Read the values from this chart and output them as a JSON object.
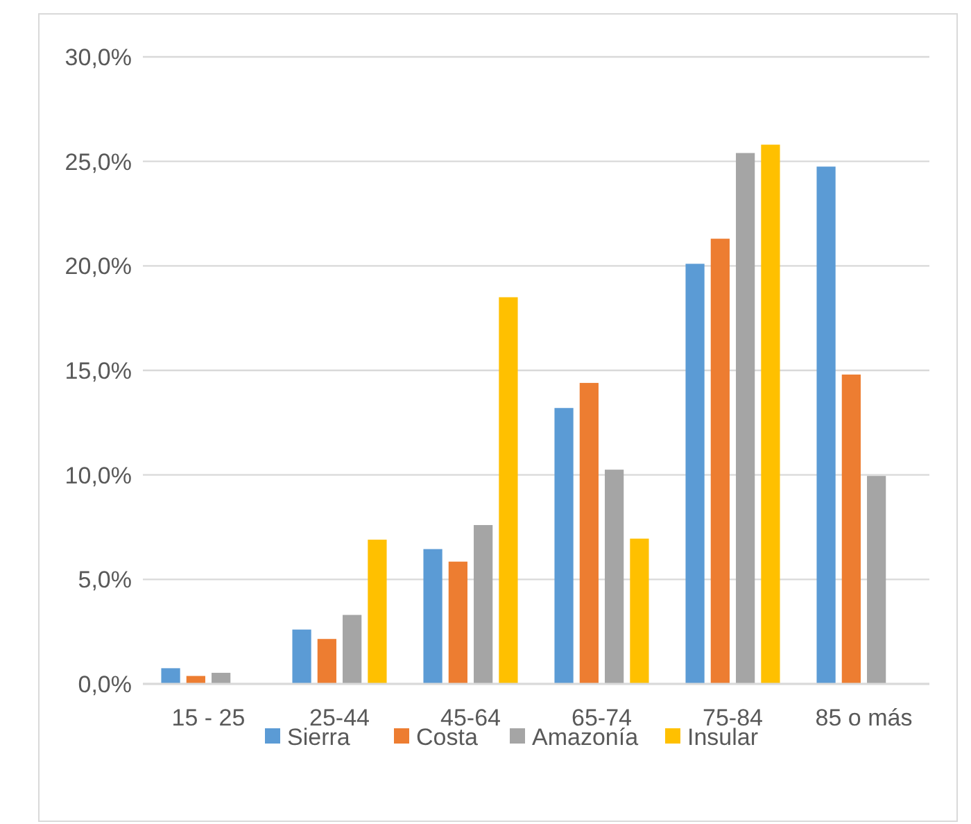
{
  "chart_data": {
    "type": "bar",
    "categories": [
      "15 - 25",
      "25-44",
      "45-64",
      "65-74",
      "75-84",
      "85 o más"
    ],
    "series": [
      {
        "name": "Sierra",
        "color": "#5b9bd5",
        "values": [
          0.75,
          2.6,
          6.45,
          13.2,
          20.1,
          24.75
        ]
      },
      {
        "name": "Costa",
        "color": "#ed7d31",
        "values": [
          0.38,
          2.15,
          5.85,
          14.4,
          21.3,
          14.8
        ]
      },
      {
        "name": "Amazonía",
        "color": "#a5a5a5",
        "values": [
          0.53,
          3.3,
          7.6,
          10.25,
          25.4,
          9.95
        ]
      },
      {
        "name": "Insular",
        "color": "#ffc000",
        "values": [
          null,
          6.9,
          18.5,
          6.95,
          25.8,
          null
        ]
      }
    ],
    "ylim": [
      0,
      30
    ],
    "yticks": [
      {
        "value": 0,
        "label": "0,0%"
      },
      {
        "value": 5,
        "label": "5,0%"
      },
      {
        "value": 10,
        "label": "10,0%"
      },
      {
        "value": 15,
        "label": "15,0%"
      },
      {
        "value": 20,
        "label": "20,0%"
      },
      {
        "value": 25,
        "label": "25,0%"
      },
      {
        "value": 30,
        "label": "30,0%"
      }
    ],
    "grid": "y",
    "legend": "bottom"
  }
}
